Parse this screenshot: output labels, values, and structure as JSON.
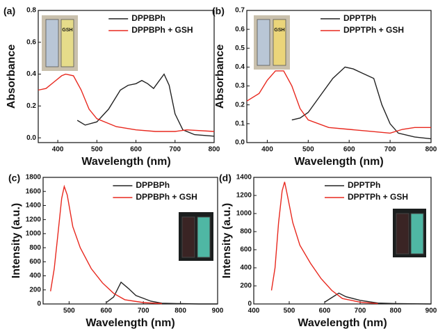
{
  "chart_data": [
    {
      "type": "line",
      "panel_label": "(a)",
      "x_label": "Wavelength (nm)",
      "y_label": "Absorbance",
      "inset_label": "GSH",
      "xlim": [
        350,
        800
      ],
      "xticks": [
        400,
        500,
        600,
        700,
        800
      ],
      "ylim": [
        -0.03,
        0.8
      ],
      "yticks": [
        {
          "value": 0,
          "label": "0.0"
        },
        0.2,
        0.4,
        0.6,
        0.8
      ],
      "legend": "upper right",
      "series": [
        {
          "name": "DPPBPh",
          "color": "#222222",
          "x": [
            450,
            470,
            500,
            530,
            560,
            580,
            600,
            615,
            630,
            645,
            660,
            672,
            685,
            700,
            720,
            750,
            800
          ],
          "values": [
            0.11,
            0.08,
            0.1,
            0.18,
            0.3,
            0.33,
            0.34,
            0.36,
            0.34,
            0.31,
            0.36,
            0.4,
            0.33,
            0.15,
            0.05,
            0.02,
            0.01
          ]
        },
        {
          "name": "DPPBPh + GSH",
          "color": "#e8281e",
          "x": [
            350,
            370,
            390,
            410,
            420,
            440,
            460,
            480,
            500,
            550,
            600,
            650,
            700,
            730,
            800
          ],
          "values": [
            0.3,
            0.31,
            0.35,
            0.39,
            0.4,
            0.39,
            0.3,
            0.18,
            0.12,
            0.07,
            0.05,
            0.04,
            0.04,
            0.05,
            0.04
          ]
        }
      ]
    },
    {
      "type": "line",
      "panel_label": "(b)",
      "x_label": "Wavelength (nm)",
      "y_label": "Absorbance",
      "inset_label": "GSH",
      "xlim": [
        350,
        800
      ],
      "xticks": [
        400,
        500,
        600,
        700,
        800
      ],
      "ylim": [
        0,
        0.7
      ],
      "yticks": [
        {
          "value": 0,
          "label": "0.0"
        },
        0.1,
        0.2,
        0.3,
        0.4,
        0.5,
        0.6,
        0.7
      ],
      "legend": "upper right",
      "series": [
        {
          "name": "DPPTPh",
          "color": "#222222",
          "x": [
            460,
            480,
            500,
            530,
            560,
            590,
            610,
            630,
            660,
            680,
            700,
            720,
            760,
            800
          ],
          "values": [
            0.12,
            0.13,
            0.16,
            0.25,
            0.34,
            0.4,
            0.39,
            0.37,
            0.34,
            0.2,
            0.1,
            0.05,
            0.03,
            0.02
          ]
        },
        {
          "name": "DPPTPh + GSH",
          "color": "#e8281e",
          "x": [
            350,
            380,
            400,
            420,
            440,
            460,
            480,
            500,
            550,
            600,
            650,
            700,
            730,
            760,
            800
          ],
          "values": [
            0.22,
            0.26,
            0.33,
            0.38,
            0.38,
            0.3,
            0.18,
            0.12,
            0.08,
            0.07,
            0.06,
            0.05,
            0.07,
            0.08,
            0.08
          ]
        }
      ]
    },
    {
      "type": "line",
      "panel_label": "(c)",
      "x_label": "Wavelength (nm)",
      "y_label": "Intensity (a.u.)",
      "xlim": [
        430,
        900
      ],
      "xticks": [
        500,
        600,
        700,
        800,
        900
      ],
      "ylim": [
        0,
        1800
      ],
      "yticks": [
        0,
        200,
        400,
        600,
        800,
        1000,
        1200,
        1400,
        1600,
        1800
      ],
      "legend": "upper right",
      "series": [
        {
          "name": "DPPBPh",
          "color": "#222222",
          "x": [
            600,
            620,
            640,
            660,
            680,
            700,
            720,
            750,
            800,
            850,
            900
          ],
          "values": [
            20,
            100,
            310,
            220,
            120,
            80,
            40,
            10,
            5,
            0,
            0
          ]
        },
        {
          "name": "DPPBPh + GSH",
          "color": "#e8281e",
          "x": [
            450,
            460,
            470,
            480,
            487,
            495,
            510,
            530,
            560,
            590,
            620,
            650,
            700,
            750
          ],
          "values": [
            180,
            500,
            1000,
            1500,
            1670,
            1550,
            1100,
            800,
            500,
            300,
            150,
            60,
            20,
            5
          ]
        }
      ]
    },
    {
      "type": "line",
      "panel_label": "(d)",
      "x_label": "Wavelength (nm)",
      "y_label": "Intensity (a.u.)",
      "xlim": [
        400,
        900
      ],
      "xticks": [
        400,
        500,
        600,
        700,
        800,
        900
      ],
      "ylim": [
        0,
        1400
      ],
      "yticks": [
        0,
        200,
        400,
        600,
        800,
        1000,
        1200,
        1400
      ],
      "legend": "upper right",
      "series": [
        {
          "name": "DPPTPh",
          "color": "#222222",
          "x": [
            600,
            620,
            640,
            660,
            700,
            750,
            800,
            900
          ],
          "values": [
            20,
            70,
            120,
            80,
            40,
            10,
            5,
            0
          ]
        },
        {
          "name": "DPPTPh + GSH",
          "color": "#e8281e",
          "x": [
            450,
            460,
            470,
            480,
            487,
            495,
            510,
            530,
            560,
            590,
            620,
            650,
            700,
            750
          ],
          "values": [
            150,
            400,
            900,
            1250,
            1350,
            1200,
            900,
            650,
            450,
            280,
            150,
            60,
            20,
            5
          ]
        }
      ]
    }
  ]
}
